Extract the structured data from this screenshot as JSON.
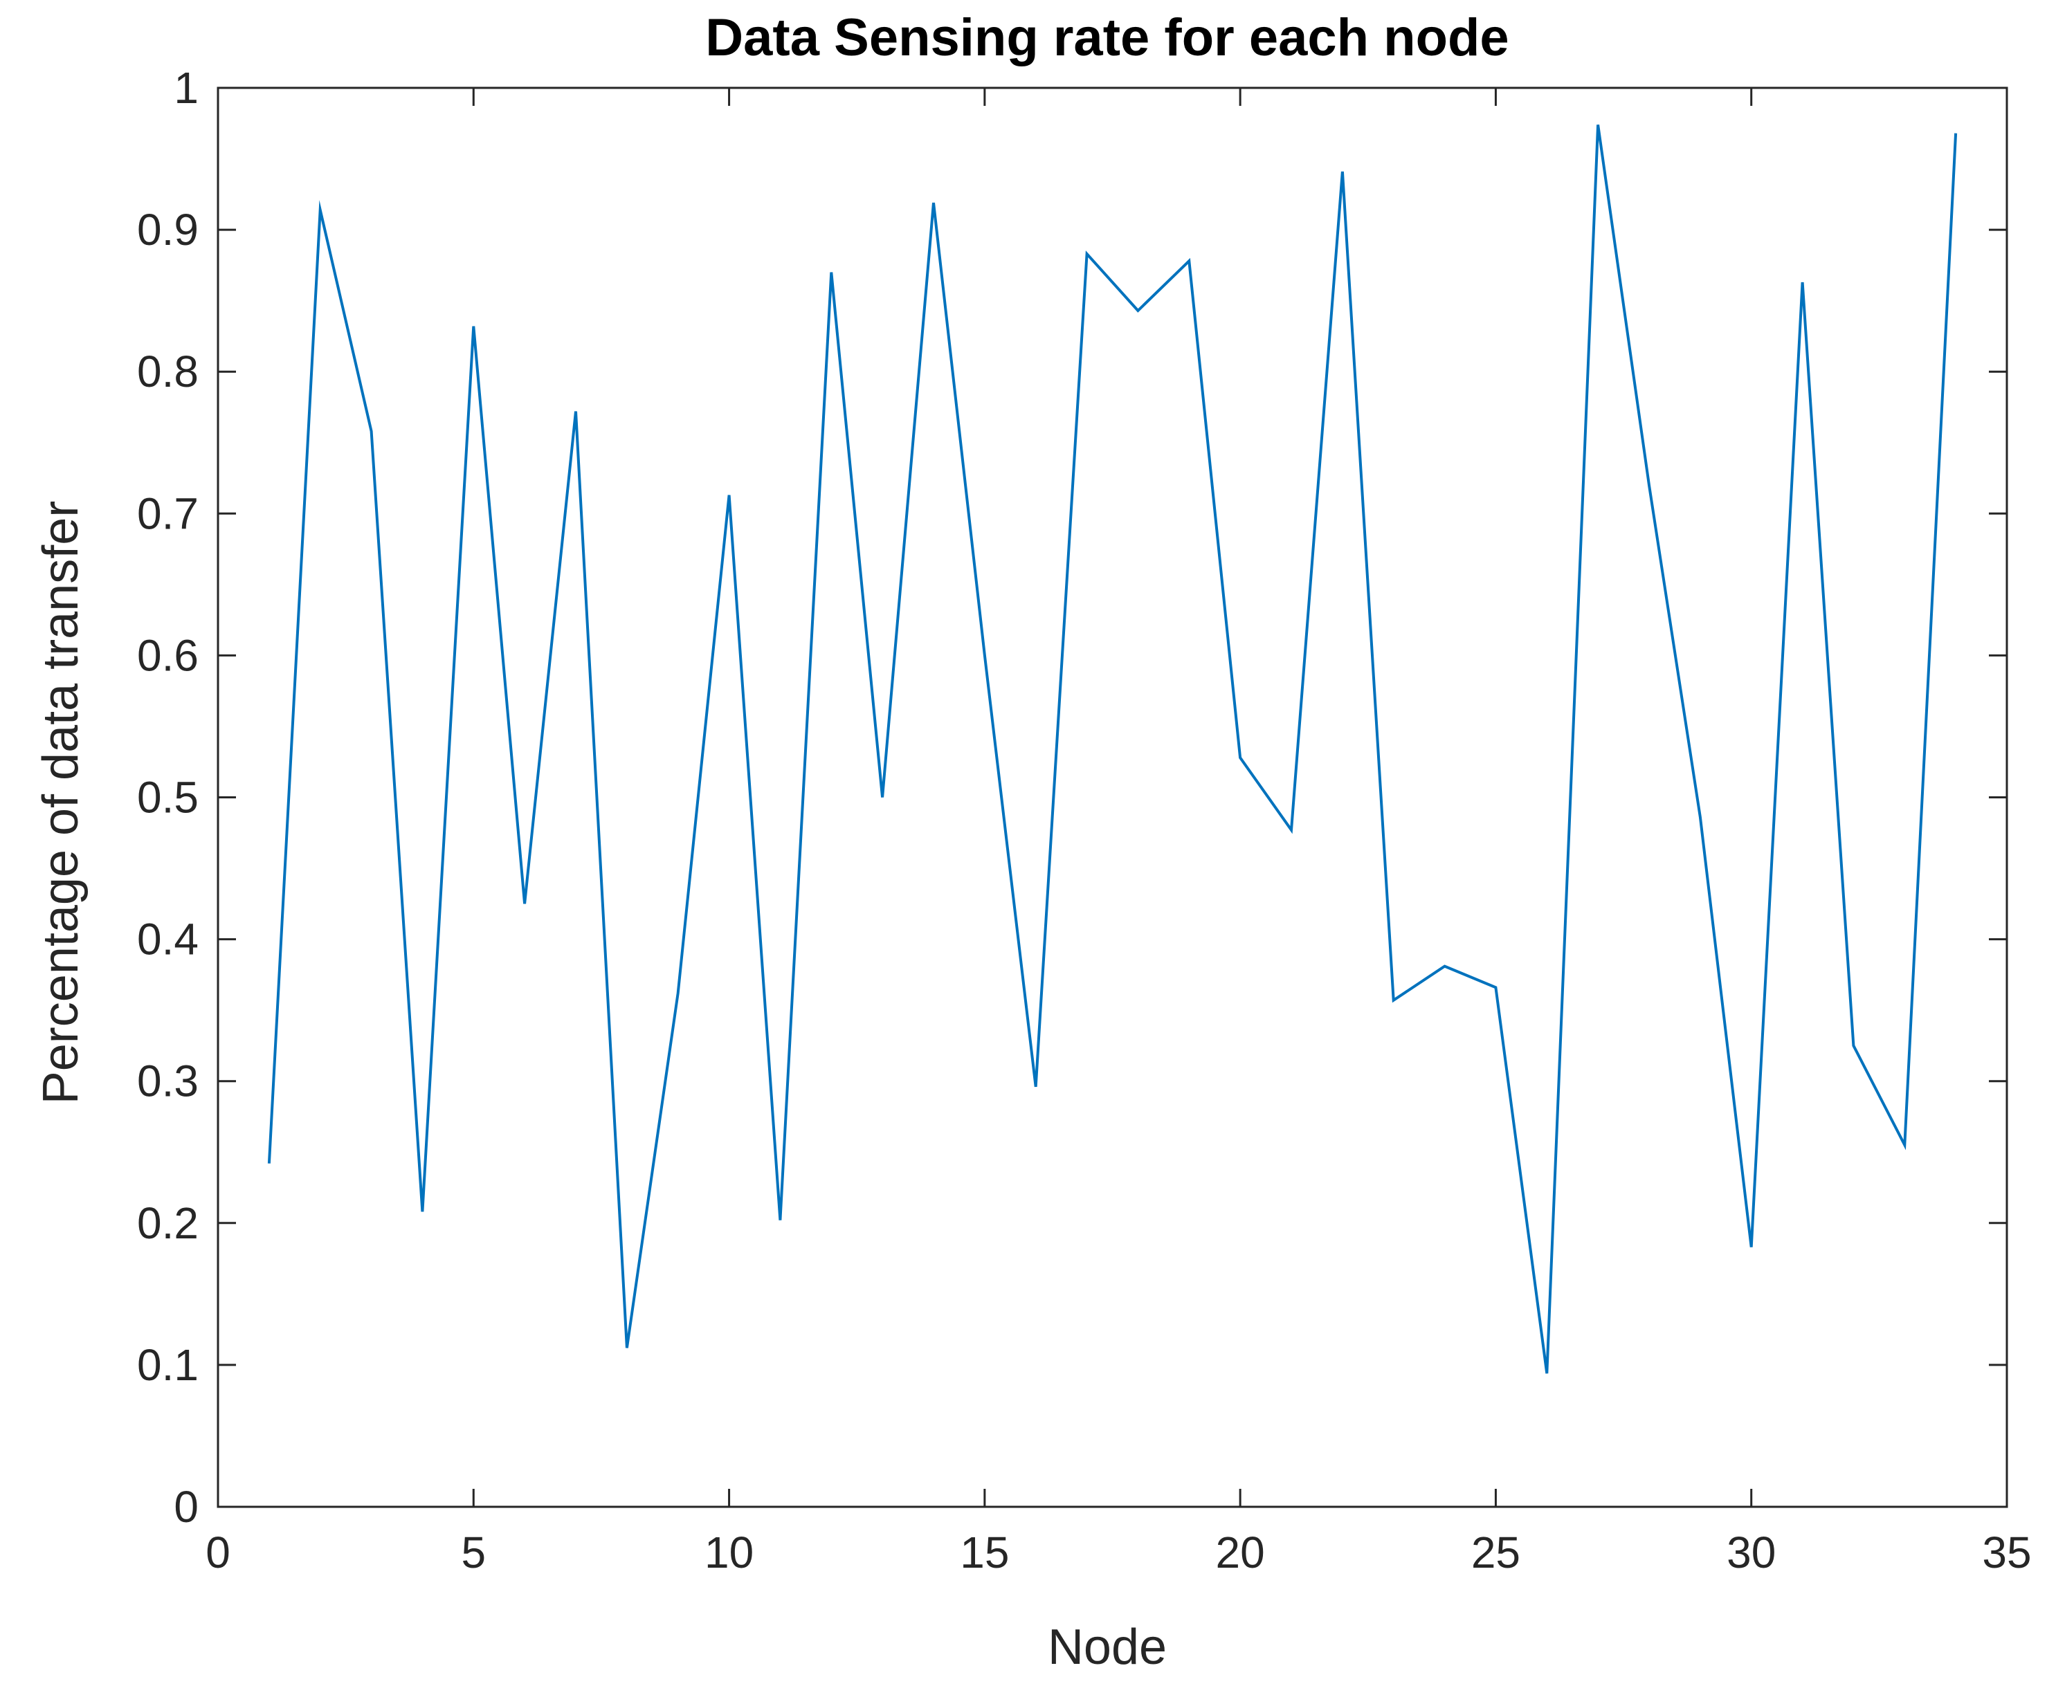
{
  "chart_data": {
    "type": "line",
    "title": "Data Sensing rate for each node",
    "xlabel": "Node",
    "ylabel": "Percentage of data transfer",
    "xlim": [
      0,
      35
    ],
    "ylim": [
      0,
      1
    ],
    "xticks": [
      "0",
      "5",
      "10",
      "15",
      "20",
      "25",
      "30",
      "35"
    ],
    "yticks": [
      "0",
      "0.1",
      "0.2",
      "0.3",
      "0.4",
      "0.5",
      "0.6",
      "0.7",
      "0.8",
      "0.9",
      "1"
    ],
    "grid": false,
    "series_color": "#0072bd",
    "axis_color": "#262626",
    "x": [
      1,
      2,
      3,
      4,
      5,
      6,
      7,
      8,
      9,
      10,
      11,
      12,
      13,
      14,
      15,
      16,
      17,
      18,
      19,
      20,
      21,
      22,
      23,
      24,
      25,
      26,
      27,
      28,
      29,
      30,
      31,
      32,
      33,
      34
    ],
    "y": [
      0.242,
      0.914,
      0.758,
      0.208,
      0.832,
      0.425,
      0.772,
      0.112,
      0.362,
      0.713,
      0.202,
      0.87,
      0.5,
      0.919,
      0.6,
      0.296,
      0.883,
      0.843,
      0.878,
      0.528,
      0.477,
      0.941,
      0.357,
      0.381,
      0.366,
      0.094,
      0.974,
      0.72,
      0.486,
      0.183,
      0.863,
      0.325,
      0.255,
      0.968
    ]
  }
}
